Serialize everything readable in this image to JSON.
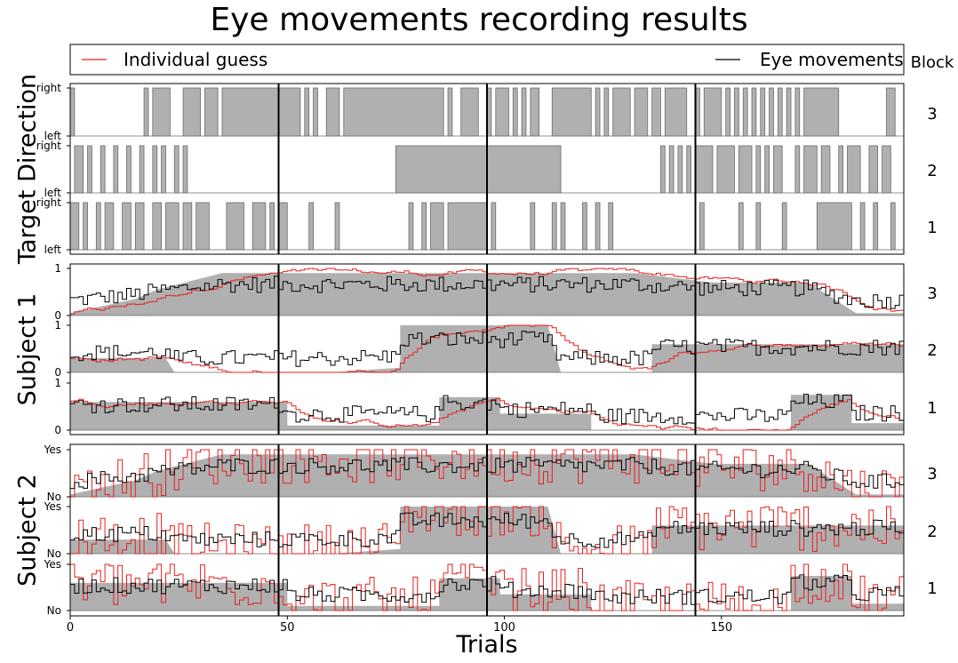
{
  "chart_data": {
    "type": "line",
    "title": "Eye movements recording results",
    "xlabel": "Trials",
    "xlim": [
      0,
      192
    ],
    "xticks": [
      0,
      50,
      100,
      150
    ],
    "vlines": [
      48,
      96,
      144
    ],
    "legend": {
      "placement": "top",
      "entries": [
        {
          "name": "Individual guess",
          "color": "#e8201f"
        },
        {
          "name": "Eye movements",
          "color": "#000000"
        }
      ]
    },
    "block_header": "Block",
    "block_labels": [
      "3",
      "2",
      "1"
    ],
    "colors": {
      "fill": "#b0b0b0",
      "edge": "#6b6b6b",
      "guess": "#e8201f",
      "eye": "#000000"
    },
    "panels": [
      {
        "ylabel": "Target Direction",
        "ytick_top": "right",
        "ytick_bottom": "left",
        "tracks": [
          {
            "block": "3",
            "target": [
              [
                0,
                1
              ],
              [
                17,
                18
              ],
              [
                19,
                23
              ],
              [
                26,
                30
              ],
              [
                31,
                34
              ],
              [
                35,
                53
              ],
              [
                54,
                55
              ],
              [
                56,
                57
              ],
              [
                59,
                62
              ],
              [
                63,
                86
              ],
              [
                87,
                88
              ],
              [
                90,
                94
              ],
              [
                96,
                97
              ],
              [
                98,
                101
              ],
              [
                102,
                103
              ],
              [
                104,
                105
              ],
              [
                106,
                108
              ],
              [
                111,
                120
              ],
              [
                121,
                122
              ],
              [
                123,
                124
              ],
              [
                125,
                129
              ],
              [
                130,
                133
              ],
              [
                134,
                136
              ],
              [
                137,
                142
              ],
              [
                144,
                145
              ],
              [
                146,
                150
              ],
              [
                151,
                152
              ],
              [
                153,
                154
              ],
              [
                155,
                156
              ],
              [
                157,
                158
              ],
              [
                159,
                160
              ],
              [
                161,
                162
              ],
              [
                163,
                164
              ],
              [
                165,
                166
              ],
              [
                167,
                168
              ],
              [
                169,
                177
              ],
              [
                188,
                190
              ]
            ]
          },
          {
            "block": "2",
            "target": [
              [
                1,
                3
              ],
              [
                4,
                5
              ],
              [
                7,
                8
              ],
              [
                10,
                11
              ],
              [
                13,
                14
              ],
              [
                16,
                17
              ],
              [
                19,
                20
              ],
              [
                21,
                22
              ],
              [
                24,
                25
              ],
              [
                26,
                27
              ],
              [
                75,
                113
              ],
              [
                136,
                137
              ],
              [
                138,
                139
              ],
              [
                140,
                141
              ],
              [
                142,
                143
              ],
              [
                144,
                148
              ],
              [
                149,
                153
              ],
              [
                154,
                157
              ],
              [
                158,
                159
              ],
              [
                160,
                161
              ],
              [
                162,
                164
              ],
              [
                167,
                168
              ],
              [
                169,
                172
              ],
              [
                173,
                175
              ],
              [
                177,
                178
              ],
              [
                179,
                182
              ],
              [
                184,
                186
              ],
              [
                187,
                189
              ]
            ]
          },
          {
            "block": "1",
            "target": [
              [
                0,
                2
              ],
              [
                3,
                4
              ],
              [
                6,
                7
              ],
              [
                8,
                10
              ],
              [
                12,
                14
              ],
              [
                15,
                17
              ],
              [
                19,
                21
              ],
              [
                22,
                25
              ],
              [
                26,
                28
              ],
              [
                29,
                32
              ],
              [
                36,
                40
              ],
              [
                42,
                45
              ],
              [
                46,
                47
              ],
              [
                48,
                50
              ],
              [
                55,
                56
              ],
              [
                61,
                62
              ],
              [
                78,
                79
              ],
              [
                81,
                82
              ],
              [
                83,
                86
              ],
              [
                87,
                96
              ],
              [
                97,
                98
              ],
              [
                106,
                107
              ],
              [
                111,
                112
              ],
              [
                113,
                114
              ],
              [
                118,
                119
              ],
              [
                121,
                122
              ],
              [
                124,
                125
              ],
              [
                145,
                146
              ],
              [
                154,
                155
              ],
              [
                158,
                159
              ],
              [
                164,
                165
              ],
              [
                172,
                180
              ],
              [
                182,
                183
              ],
              [
                185,
                186
              ],
              [
                189,
                190
              ]
            ]
          }
        ]
      },
      {
        "ylabel": "Subject 1",
        "ytick_top": "1",
        "ytick_bottom": "0",
        "tracks": [
          {
            "block": "3",
            "target_p": [
              [
                0,
                0.05
              ],
              [
                15,
                0.35
              ],
              [
                20,
                0.55
              ],
              [
                35,
                0.9
              ],
              [
                50,
                0.9
              ],
              [
                90,
                0.9
              ],
              [
                110,
                0.9
              ],
              [
                130,
                0.9
              ],
              [
                148,
                0.7
              ],
              [
                170,
                0.7
              ],
              [
                181,
                0.05
              ],
              [
                190,
                0.05
              ]
            ]
          },
          {
            "block": "2",
            "target_p": [
              [
                0,
                0.3
              ],
              [
                22,
                0.3
              ],
              [
                24,
                0.0
              ],
              [
                60,
                0.0
              ],
              [
                76,
                0.1
              ],
              [
                76,
                1.0
              ],
              [
                110,
                1.0
              ],
              [
                113,
                0.0
              ],
              [
                134,
                0.0
              ],
              [
                134,
                0.6
              ],
              [
                190,
                0.6
              ]
            ]
          },
          {
            "block": "1",
            "target_p": [
              [
                0,
                0.6
              ],
              [
                50,
                0.6
              ],
              [
                50,
                0.1
              ],
              [
                70,
                0.1
              ],
              [
                85,
                0.1
              ],
              [
                85,
                0.7
              ],
              [
                99,
                0.7
              ],
              [
                99,
                0.35
              ],
              [
                120,
                0.35
              ],
              [
                120,
                0.0
              ],
              [
                166,
                0.0
              ],
              [
                166,
                0.75
              ],
              [
                180,
                0.75
              ],
              [
                180,
                0.15
              ],
              [
                190,
                0.15
              ]
            ]
          }
        ]
      },
      {
        "ylabel": "Subject 2",
        "ytick_top": "Yes",
        "ytick_bottom": "No",
        "tracks": [
          {
            "block": "3",
            "target_p": [
              [
                0,
                0.05
              ],
              [
                15,
                0.35
              ],
              [
                20,
                0.55
              ],
              [
                35,
                0.9
              ],
              [
                50,
                0.9
              ],
              [
                90,
                0.9
              ],
              [
                110,
                0.9
              ],
              [
                130,
                0.9
              ],
              [
                148,
                0.7
              ],
              [
                170,
                0.7
              ],
              [
                181,
                0.05
              ],
              [
                190,
                0.05
              ]
            ]
          },
          {
            "block": "2",
            "target_p": [
              [
                0,
                0.3
              ],
              [
                22,
                0.3
              ],
              [
                24,
                0.0
              ],
              [
                60,
                0.0
              ],
              [
                76,
                0.1
              ],
              [
                76,
                1.0
              ],
              [
                110,
                1.0
              ],
              [
                113,
                0.0
              ],
              [
                134,
                0.0
              ],
              [
                134,
                0.6
              ],
              [
                190,
                0.6
              ]
            ]
          },
          {
            "block": "1",
            "target_p": [
              [
                0,
                0.6
              ],
              [
                50,
                0.6
              ],
              [
                50,
                0.1
              ],
              [
                70,
                0.1
              ],
              [
                85,
                0.1
              ],
              [
                85,
                0.7
              ],
              [
                99,
                0.7
              ],
              [
                99,
                0.35
              ],
              [
                120,
                0.35
              ],
              [
                120,
                0.0
              ],
              [
                166,
                0.0
              ],
              [
                166,
                0.75
              ],
              [
                180,
                0.75
              ],
              [
                180,
                0.15
              ],
              [
                190,
                0.15
              ]
            ]
          }
        ]
      }
    ]
  }
}
